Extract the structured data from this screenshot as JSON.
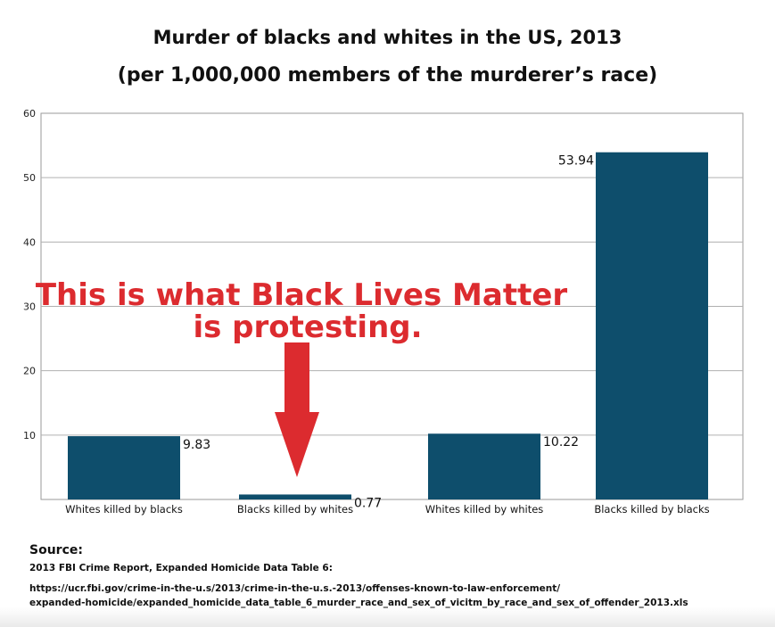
{
  "chart_data": {
    "type": "bar",
    "title": "Murder of blacks and whites in the US, 2013",
    "subtitle": "(per 1,000,000 members of the murderer’s race)",
    "categories": [
      "Whites killed by blacks",
      "Blacks killed by whites",
      "Whites killed by whites",
      "Blacks killed by blacks"
    ],
    "values": [
      9.83,
      0.77,
      10.22,
      53.94
    ],
    "value_labels": [
      "9.83",
      "0.77",
      "10.22",
      "53.94"
    ],
    "yticks": [
      10,
      20,
      30,
      40,
      50,
      60
    ],
    "ylim": [
      0,
      60
    ],
    "xlabel": "",
    "ylabel": "",
    "grid": true,
    "bar_color": "#0e4e6c",
    "annotation": {
      "line1": "This is what Black Lives Matter",
      "line2": "is protesting.",
      "color": "#dc2b2f"
    }
  },
  "source": {
    "heading": "Source:",
    "report": "2013 FBI Crime Report, Expanded Homicide Data Table 6:",
    "url_line1": "https://ucr.fbi.gov/crime-in-the-u.s/2013/crime-in-the-u.s.-2013/offenses-known-to-law-enforcement/",
    "url_line2": "expanded-homicide/expanded_homicide_data_table_6_murder_race_and_sex_of_vicitm_by_race_and_sex_of_offender_2013.xls"
  }
}
